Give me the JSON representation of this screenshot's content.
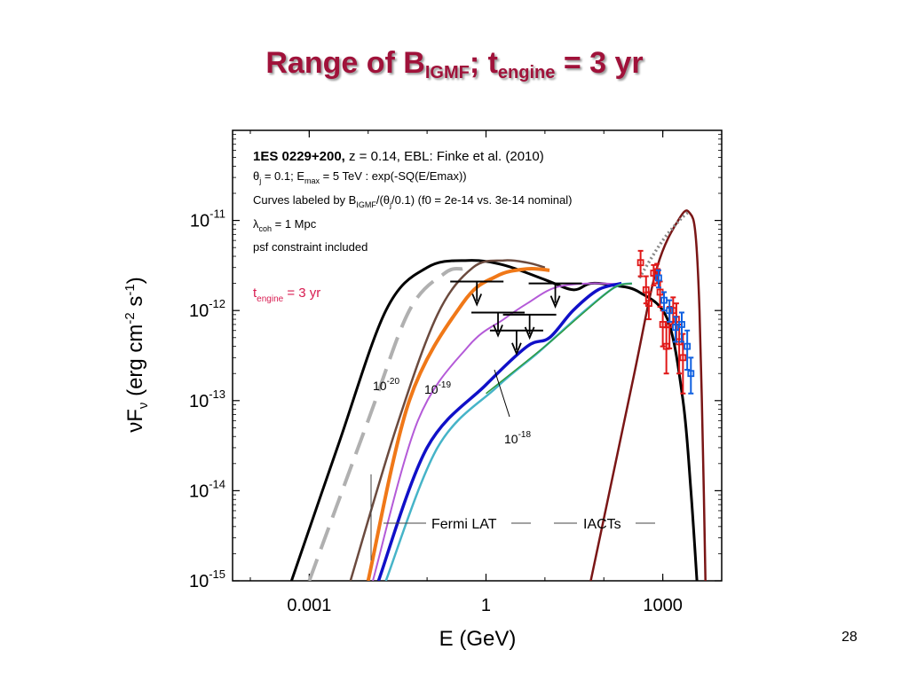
{
  "slide": {
    "title_main": "Range of B",
    "title_sub1": "IGMF",
    "title_mid": "; t",
    "title_sub2": "engine",
    "title_end": " = 3 yr",
    "page_number": "28"
  },
  "chart_data": {
    "type": "line",
    "log_x": true,
    "log_y": true,
    "xlabel": "E (GeV)",
    "ylabel": "νFν (erg cm⁻² s⁻¹)",
    "xlim": [
      5e-05,
      10000
    ],
    "ylim": [
      1e-15,
      1e-10
    ],
    "x_ticks": [
      {
        "value": 0.001,
        "label": "0.001"
      },
      {
        "value": 1,
        "label": "1"
      },
      {
        "value": 1000,
        "label": "1000"
      }
    ],
    "y_ticks": [
      {
        "value": 1e-11,
        "base": "10",
        "exp": "-11"
      },
      {
        "value": 1e-12,
        "base": "10",
        "exp": "-12"
      },
      {
        "value": 1e-13,
        "base": "10",
        "exp": "-13"
      },
      {
        "value": 1e-14,
        "base": "10",
        "exp": "-14"
      },
      {
        "value": 1e-15,
        "base": "10",
        "exp": "-15"
      }
    ],
    "legend_text": {
      "line1_bold": "1ES 0229+200,",
      "line1_rest": " z = 0.14,   EBL: Finke et al. (2010)",
      "line2": "θj = 0.1; Emax = 5 TeV : exp(-SQ(E/Emax))",
      "line3": "Curves labeled by BIGMF/(θj/0.1)  (f0 = 2e-14 vs. 3e-14 nominal)",
      "line4": "λcoh = 1 Mpc",
      "line5": "psf constraint included"
    },
    "t_engine_label": "tengine = 3 yr",
    "curve_labels": [
      {
        "text": "10",
        "exp": "-20"
      },
      {
        "text": "10",
        "exp": "-19"
      },
      {
        "text": "10",
        "exp": "-18"
      }
    ],
    "instrument_labels": {
      "fermi": "Fermi LAT",
      "iacts": "IACTs"
    },
    "colors": {
      "black": "#000000",
      "gray": "#b0b0b0",
      "brown": "#6b4a3e",
      "orange": "#f07818",
      "violet": "#b45ad8",
      "blue": "#1010c8",
      "cyan": "#46b4c8",
      "green": "#2e9a3e",
      "darkred": "#7a1616",
      "title": "#a0123a",
      "data_red": "#e01818",
      "data_blue": "#1060e0"
    },
    "series": [
      {
        "color": "black",
        "style": "solid",
        "points": [
          [
            0.0005,
            1e-15
          ],
          [
            0.003,
            3e-14
          ],
          [
            0.02,
            1e-12
          ],
          [
            0.1,
            3e-12
          ],
          [
            0.5,
            3.6e-12
          ],
          [
            2,
            3.2e-12
          ],
          [
            10,
            2.2e-12
          ],
          [
            30,
            1.7e-12
          ],
          [
            60,
            2e-12
          ],
          [
            150,
            1.9e-12
          ],
          [
            400,
            1.6e-12
          ],
          [
            1200,
            8e-13
          ],
          [
            2200,
            1e-13
          ],
          [
            3000,
            1e-14
          ],
          [
            3800,
            1e-15
          ]
        ]
      },
      {
        "color": "gray",
        "style": "dashed",
        "points": [
          [
            0.001,
            1e-15
          ],
          [
            0.01,
            6e-14
          ],
          [
            0.05,
            1e-12
          ],
          [
            0.2,
            2.6e-12
          ],
          [
            0.4,
            2.9e-12
          ]
        ]
      },
      {
        "color": "brown",
        "style": "solid",
        "points": [
          [
            0.005,
            1e-15
          ],
          [
            0.03,
            5e-14
          ],
          [
            0.15,
            9e-13
          ],
          [
            0.6,
            3e-12
          ],
          [
            2,
            3.6e-12
          ],
          [
            5,
            3.4e-12
          ],
          [
            10,
            3e-12
          ]
        ]
      },
      {
        "color": "orange",
        "style": "solid",
        "points": [
          [
            0.01,
            1e-15
          ],
          [
            0.05,
            1e-13
          ],
          [
            0.4,
            1.2e-12
          ],
          [
            1.5,
            2.4e-12
          ],
          [
            5,
            2.9e-12
          ],
          [
            12,
            2.8e-12
          ]
        ]
      },
      {
        "color": "violet",
        "style": "solid",
        "points": [
          [
            0.012,
            1e-15
          ],
          [
            0.07,
            6e-14
          ],
          [
            0.5,
            4e-13
          ],
          [
            2,
            8e-13
          ],
          [
            5,
            1.2e-12
          ],
          [
            15,
            1.8e-12
          ],
          [
            60,
            2e-12
          ],
          [
            200,
            1.95e-12
          ]
        ]
      },
      {
        "color": "blue",
        "style": "solid",
        "points": [
          [
            0.015,
            1e-15
          ],
          [
            0.1,
            3e-14
          ],
          [
            1,
            1.5e-13
          ],
          [
            5,
            4e-13
          ],
          [
            12,
            5e-13
          ],
          [
            30,
            1e-12
          ],
          [
            80,
            1.7e-12
          ],
          [
            200,
            2e-12
          ]
        ]
      },
      {
        "color": "cyan",
        "style": "solid",
        "points": [
          [
            0.02,
            1e-15
          ],
          [
            0.15,
            3e-14
          ],
          [
            1.5,
            1.4e-13
          ],
          [
            8,
            3.5e-13
          ],
          [
            40,
            9e-13
          ],
          [
            150,
            1.8e-12
          ],
          [
            300,
            2e-12
          ]
        ]
      },
      {
        "color": "green",
        "style": "solid",
        "points": [
          [
            1,
            1.2e-13
          ],
          [
            10,
            4e-13
          ],
          [
            50,
            1e-12
          ],
          [
            150,
            1.8e-12
          ],
          [
            300,
            2e-12
          ]
        ]
      },
      {
        "color": "darkred",
        "style": "solid",
        "points": [
          [
            60,
            1e-15
          ],
          [
            300,
            1.5e-13
          ],
          [
            800,
            3e-12
          ],
          [
            2000,
            1.1e-11
          ],
          [
            2900,
            1.2e-11
          ],
          [
            3600,
            7e-12
          ],
          [
            4200,
            1e-12
          ],
          [
            4800,
            3e-14
          ],
          [
            5300,
            1e-15
          ]
        ]
      },
      {
        "color": "gray",
        "style": "dotted",
        "points": [
          [
            400,
            2.3e-12
          ],
          [
            1000,
            6e-12
          ],
          [
            2200,
            1.1e-11
          ],
          [
            2900,
            1.25e-11
          ]
        ]
      }
    ],
    "upper_limits": [
      {
        "x": 0.7,
        "y": 2.1e-12
      },
      {
        "x": 1.6,
        "y": 9.5e-13
      },
      {
        "x": 3.3,
        "y": 6e-13
      },
      {
        "x": 5.5,
        "y": 9e-13
      },
      {
        "x": 15,
        "y": 2e-12
      }
    ],
    "data_points": [
      {
        "set": "red",
        "x": 420,
        "y": 3.4e-12,
        "ylo": 2.4e-12,
        "yhi": 4.6e-12
      },
      {
        "set": "red",
        "x": 520,
        "y": 1.7e-12,
        "ylo": 1.2e-12,
        "yhi": 2.4e-12
      },
      {
        "set": "red",
        "x": 580,
        "y": 1.2e-12,
        "ylo": 8e-13,
        "yhi": 1.6e-12
      },
      {
        "set": "red",
        "x": 700,
        "y": 2.6e-12,
        "ylo": 1.9e-12,
        "yhi": 3.2e-12
      },
      {
        "set": "red",
        "x": 800,
        "y": 2.7e-12,
        "ylo": 2e-12,
        "yhi": 3.3e-12
      },
      {
        "set": "red",
        "x": 900,
        "y": 1.6e-12,
        "ylo": 1.1e-12,
        "yhi": 2.1e-12
      },
      {
        "set": "red",
        "x": 1000,
        "y": 7e-13,
        "ylo": 4e-13,
        "yhi": 1e-12
      },
      {
        "set": "red",
        "x": 1150,
        "y": 4e-13,
        "ylo": 2e-13,
        "yhi": 6.5e-13
      },
      {
        "set": "red",
        "x": 1300,
        "y": 7e-13,
        "ylo": 3.8e-13,
        "yhi": 1.1e-12
      },
      {
        "set": "red",
        "x": 1500,
        "y": 1e-12,
        "ylo": 7e-13,
        "yhi": 1.4e-12
      },
      {
        "set": "red",
        "x": 1700,
        "y": 8e-13,
        "ylo": 4.5e-13,
        "yhi": 1.2e-12
      },
      {
        "set": "red",
        "x": 1900,
        "y": 4.5e-13,
        "ylo": 2e-13,
        "yhi": 7e-13
      },
      {
        "set": "red",
        "x": 2200,
        "y": 3e-13,
        "ylo": 1.2e-13,
        "yhi": 5.5e-13
      },
      {
        "set": "blue",
        "x": 850,
        "y": 2.3e-12,
        "ylo": 1.8e-12,
        "yhi": 2.8e-12
      },
      {
        "set": "blue",
        "x": 1050,
        "y": 1.3e-12,
        "ylo": 1e-12,
        "yhi": 1.6e-12
      },
      {
        "set": "blue",
        "x": 1300,
        "y": 1e-12,
        "ylo": 7.5e-13,
        "yhi": 1.3e-12
      },
      {
        "set": "blue",
        "x": 1650,
        "y": 6.5e-13,
        "ylo": 4.5e-13,
        "yhi": 8.5e-13
      },
      {
        "set": "blue",
        "x": 2100,
        "y": 7e-13,
        "ylo": 4.5e-13,
        "yhi": 9.5e-13
      },
      {
        "set": "blue",
        "x": 2600,
        "y": 4e-13,
        "ylo": 2.2e-13,
        "yhi": 6e-13
      },
      {
        "set": "blue",
        "x": 3000,
        "y": 2e-13,
        "ylo": 1.2e-13,
        "yhi": 3e-13
      }
    ]
  }
}
